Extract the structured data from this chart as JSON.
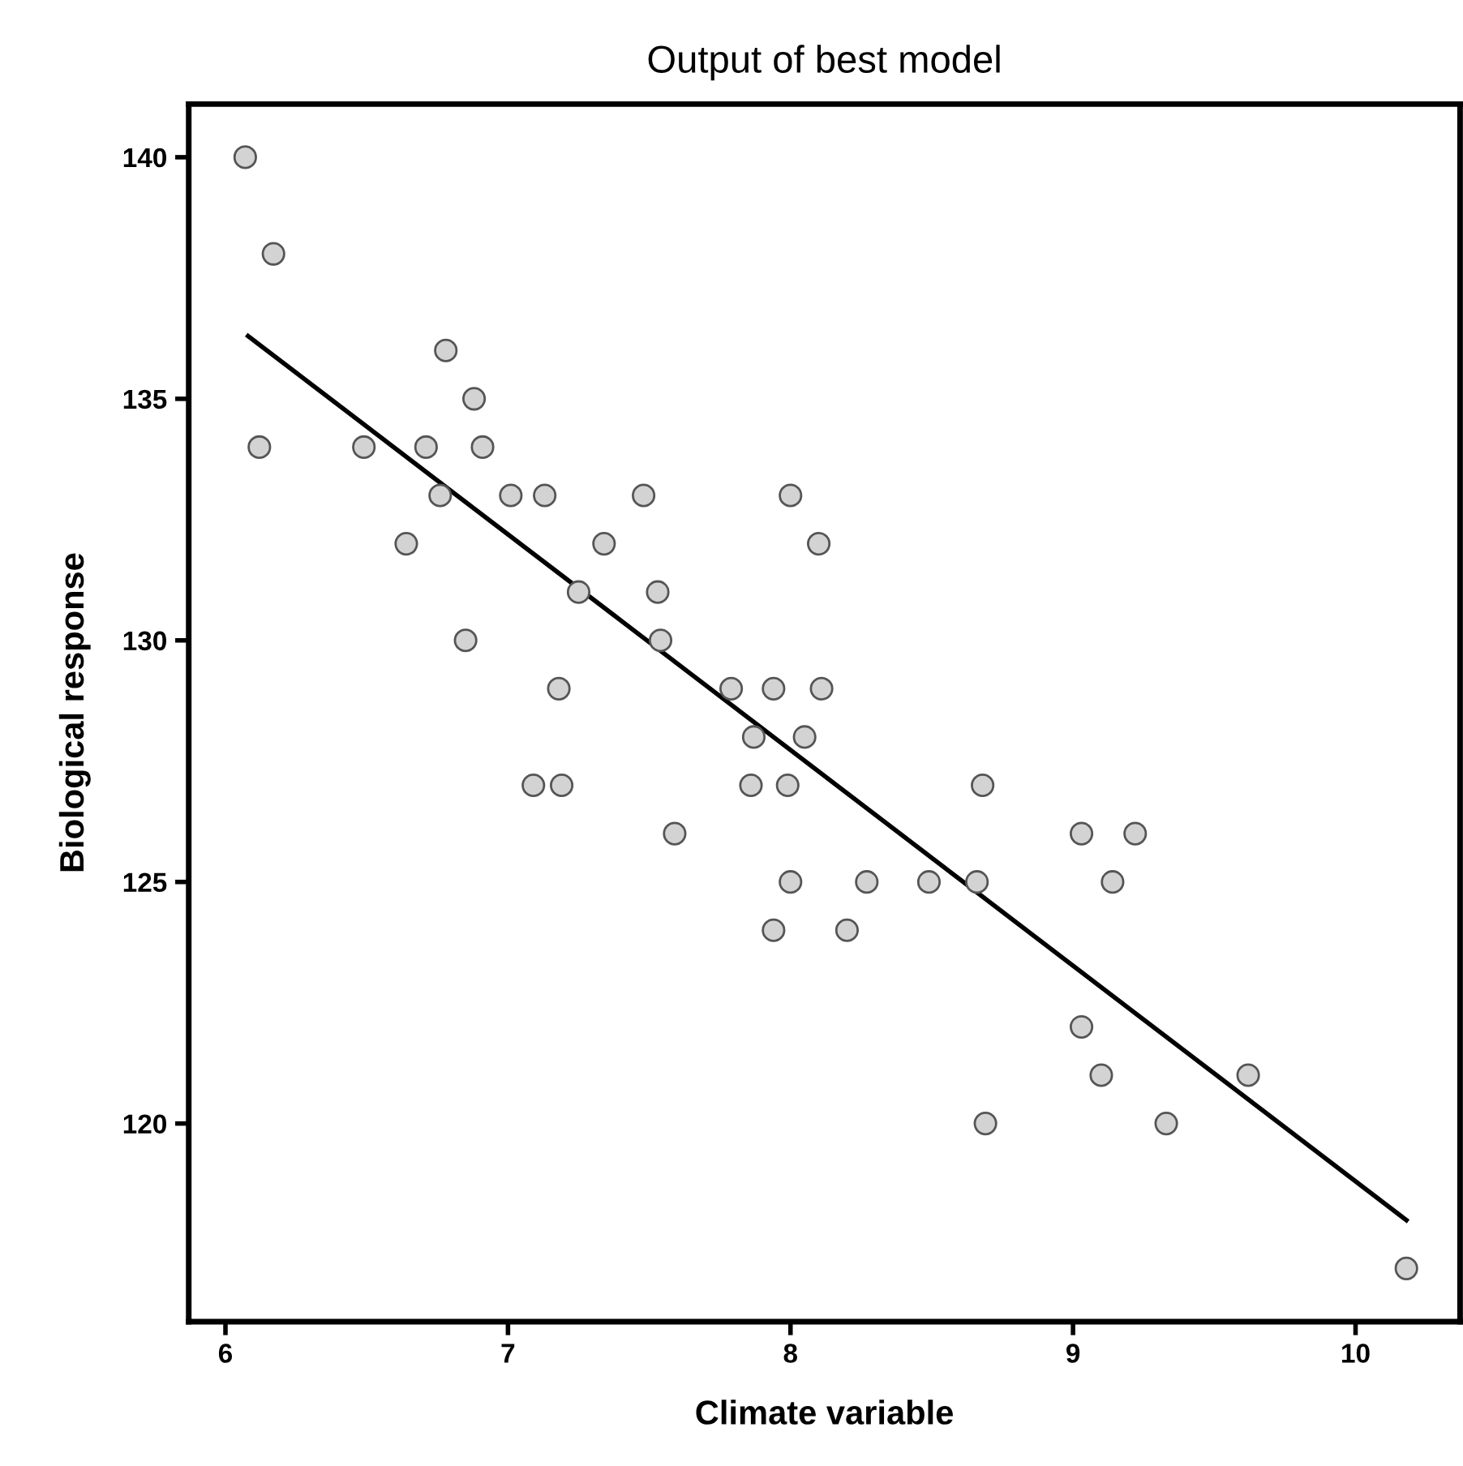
{
  "chart_data": {
    "type": "scatter",
    "title": "Output of best model",
    "xlabel": "Climate variable",
    "ylabel": "Biological response",
    "xlim": [
      5.87,
      10.37
    ],
    "ylim": [
      115.9,
      141.1
    ],
    "xticks": [
      6,
      7,
      8,
      9,
      10
    ],
    "yticks": [
      120,
      125,
      130,
      135,
      140
    ],
    "grid": false,
    "series": [
      {
        "marker": "circle",
        "color": "#d3d3d3",
        "x": [
          6.07,
          6.17,
          6.12,
          6.49,
          6.71,
          6.78,
          6.88,
          6.91,
          6.76,
          7.01,
          7.13,
          7.48,
          6.64,
          7.34,
          7.25,
          7.53,
          6.85,
          7.54,
          7.18,
          7.09,
          7.19,
          8.0,
          8.1,
          7.79,
          7.94,
          8.11,
          7.87,
          8.05,
          7.86,
          7.99,
          8.68,
          7.59,
          9.03,
          8.0,
          8.27,
          8.49,
          8.66,
          7.94,
          8.2,
          9.22,
          9.14,
          9.03,
          9.1,
          9.62,
          8.69,
          9.33,
          10.18
        ],
        "values": [
          140,
          138,
          134,
          134,
          134,
          136,
          135,
          134,
          133,
          133,
          133,
          133,
          132,
          132,
          131,
          131,
          130,
          130,
          129,
          127,
          127,
          133,
          132,
          129,
          129,
          129,
          128,
          128,
          127,
          127,
          127,
          126,
          126,
          125,
          125,
          125,
          125,
          124,
          124,
          126,
          125,
          122,
          121,
          121,
          120,
          120,
          117
        ]
      },
      {
        "type": "line",
        "marker": "none",
        "color": "#000000",
        "x": [
          6.08,
          10.18
        ],
        "values": [
          136.3,
          118.0
        ]
      }
    ]
  }
}
